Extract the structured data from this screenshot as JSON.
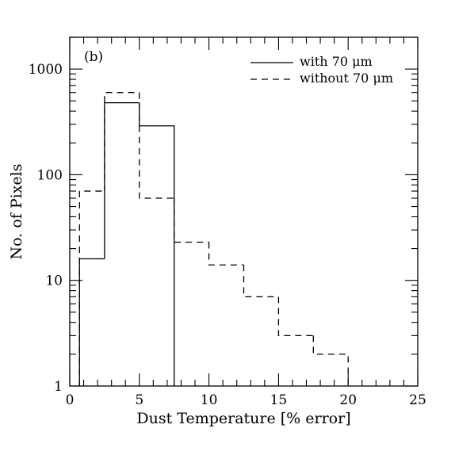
{
  "chart_data": {
    "type": "histogram",
    "panel_label": "(b)",
    "xlabel": "Dust Temperature [% error]",
    "ylabel": "No. of Pixels",
    "xlim": [
      0,
      25
    ],
    "ylim": [
      1,
      2000
    ],
    "yscale": "log",
    "x_ticks": [
      "0",
      "5",
      "10",
      "15",
      "20",
      "25"
    ],
    "y_ticks": [
      "1",
      "10",
      "100",
      "1000"
    ],
    "legend_position": "top-right",
    "series": [
      {
        "name": "with 70 μm",
        "line_style": "solid",
        "bins": [
          {
            "x0": 0.7,
            "x1": 2.5,
            "y": 16
          },
          {
            "x0": 2.5,
            "x1": 5.0,
            "y": 480
          },
          {
            "x0": 5.0,
            "x1": 7.5,
            "y": 290
          }
        ]
      },
      {
        "name": "without 70 μm",
        "line_style": "dashed",
        "bins": [
          {
            "x0": 0.7,
            "x1": 2.5,
            "y": 70
          },
          {
            "x0": 2.5,
            "x1": 5.0,
            "y": 600
          },
          {
            "x0": 5.0,
            "x1": 7.5,
            "y": 60
          },
          {
            "x0": 7.5,
            "x1": 10.0,
            "y": 23
          },
          {
            "x0": 10.0,
            "x1": 12.5,
            "y": 14
          },
          {
            "x0": 12.5,
            "x1": 15.0,
            "y": 7
          },
          {
            "x0": 15.0,
            "x1": 17.5,
            "y": 3
          },
          {
            "x0": 17.5,
            "x1": 20.0,
            "y": 2
          }
        ]
      }
    ]
  }
}
